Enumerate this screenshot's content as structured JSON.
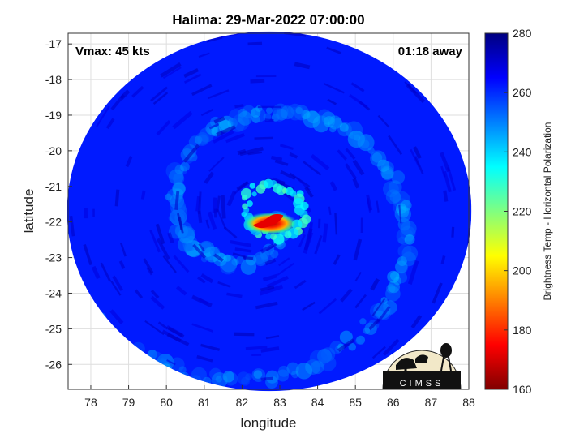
{
  "chart_data": {
    "type": "heatmap",
    "title": "Halima: 29-Mar-2022 07:00:00",
    "xlabel": "longitude",
    "ylabel": "latitude",
    "xlim": [
      77.4,
      88.0
    ],
    "ylim": [
      -26.7,
      -16.7
    ],
    "xticks": [
      "78",
      "79",
      "80",
      "81",
      "82",
      "83",
      "84",
      "85",
      "86",
      "87",
      "88"
    ],
    "yticks": [
      "-17",
      "-18",
      "-19",
      "-20",
      "-21",
      "-22",
      "-23",
      "-24",
      "-25",
      "-26"
    ],
    "grid": true,
    "inset_left": "Vmax: 45 kts",
    "inset_right": "01:18 away",
    "logo_text": "CIMSS",
    "colorbar": {
      "label": "Brightness Temp - Horizontal Polarization",
      "min": 160,
      "max": 280,
      "ticks": [
        "160",
        "180",
        "200",
        "220",
        "240",
        "260",
        "280"
      ],
      "colors": [
        "#800000",
        "#ff0000",
        "#ff8000",
        "#ffff00",
        "#80ff80",
        "#00ffff",
        "#0080ff",
        "#0000ff",
        "#000080"
      ]
    },
    "swath": {
      "center_lon": 82.72,
      "center_lat": -21.7,
      "radius_lon": 5.35,
      "radius_lat": 5.05,
      "background_temp": 262,
      "eye_lon": 82.4,
      "eye_lat": -21.85,
      "warm_core_temp": 172,
      "warm_core_lon": 82.75,
      "warm_core_lat": -21.95
    }
  }
}
